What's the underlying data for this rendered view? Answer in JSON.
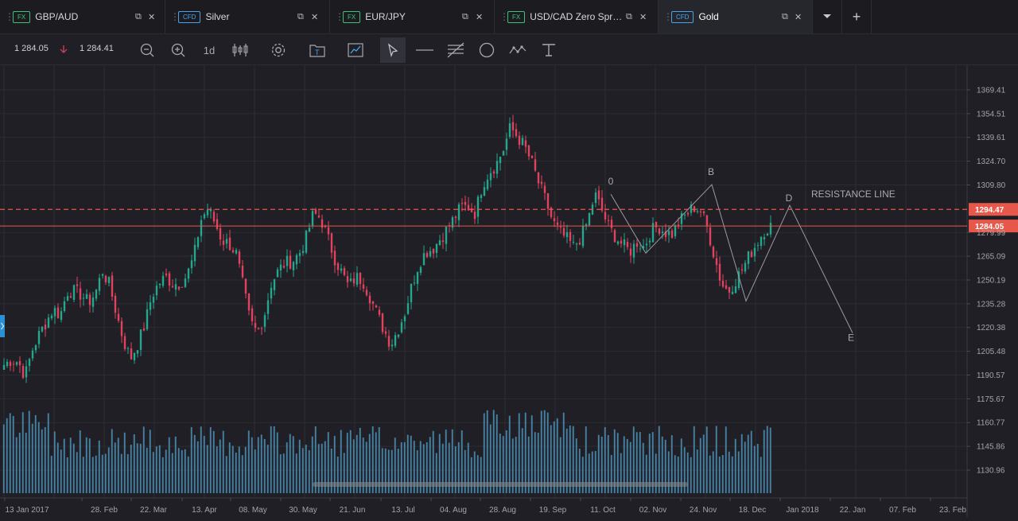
{
  "tabs": [
    {
      "badge": "FX",
      "name": "GBP/AUD",
      "active": false
    },
    {
      "badge": "CFD",
      "name": "Silver",
      "active": false
    },
    {
      "badge": "FX",
      "name": "EUR/JPY",
      "active": false
    },
    {
      "badge": "FX",
      "name": "USD/CAD Zero Spr…",
      "active": false
    },
    {
      "badge": "CFD",
      "name": "Gold",
      "active": true
    }
  ],
  "toolbar": {
    "bid": "1 284.05",
    "ask": "1 284.41",
    "interval": "1d",
    "icons": [
      "zoom-out-icon",
      "zoom-in-icon",
      "interval",
      "candles-icon",
      "settings-icon",
      "template-icon",
      "chart-type-icon",
      "cursor-icon",
      "line-icon",
      "fib-icon",
      "circle-icon",
      "wave-icon",
      "text-tool-icon"
    ]
  },
  "colors": {
    "up": "#26a68c",
    "down": "#e0435e",
    "volume": "#4f93bb",
    "resistance": "#e8584a",
    "current": "#e8584a",
    "accent": "#2b8fd6"
  },
  "chart_data": {
    "type": "candlestick",
    "instrument": "Gold",
    "y_ticks": [
      "1369.41",
      "1354.51",
      "1339.61",
      "1324.70",
      "1309.80",
      "1279.99",
      "1265.09",
      "1250.19",
      "1235.28",
      "1220.38",
      "1205.48",
      "1190.57",
      "1175.67",
      "1160.77",
      "1145.86",
      "1130.96"
    ],
    "x_ticks": [
      "13 Jan 2017",
      "28. Feb",
      "22. Mar",
      "13. Apr",
      "08. May",
      "30. May",
      "21. Jun",
      "13. Jul",
      "04. Aug",
      "28. Aug",
      "19. Sep",
      "11. Oct",
      "02. Nov",
      "24. Nov",
      "18. Dec",
      "Jan 2018",
      "22. Jan",
      "07. Feb",
      "23. Feb"
    ],
    "resistance_level": "1294.47",
    "current_price": "1284.05",
    "annotation_text": "RESISTANCE  LINE",
    "pattern_labels": [
      "0",
      "B",
      "D",
      "E"
    ],
    "pattern_prices": [
      1304,
      1310,
      1297,
      1217
    ],
    "pattern_troughs": [
      1267,
      1237
    ],
    "close_path": [
      1197,
      1200,
      1199,
      1190,
      1206,
      1216,
      1224,
      1232,
      1228,
      1243,
      1243,
      1241,
      1236,
      1242,
      1256,
      1247,
      1229,
      1212,
      1201,
      1210,
      1222,
      1240,
      1248,
      1252,
      1248,
      1248,
      1253,
      1265,
      1288,
      1295,
      1286,
      1275,
      1273,
      1267,
      1246,
      1224,
      1217,
      1228,
      1248,
      1256,
      1261,
      1262,
      1267,
      1277,
      1292,
      1289,
      1277,
      1264,
      1255,
      1246,
      1252,
      1250,
      1240,
      1229,
      1219,
      1210,
      1219,
      1230,
      1247,
      1261,
      1268,
      1270,
      1276,
      1282,
      1289,
      1296,
      1296,
      1292,
      1310,
      1318,
      1323,
      1332,
      1346,
      1340,
      1334,
      1324,
      1311,
      1300,
      1287,
      1280,
      1276,
      1271,
      1277,
      1287,
      1304,
      1294,
      1283,
      1277,
      1272,
      1268,
      1274,
      1271,
      1281,
      1284,
      1280,
      1279,
      1287,
      1291,
      1296,
      1294,
      1283,
      1265,
      1248,
      1243,
      1250,
      1257,
      1266,
      1273,
      1281,
      1284
    ]
  }
}
